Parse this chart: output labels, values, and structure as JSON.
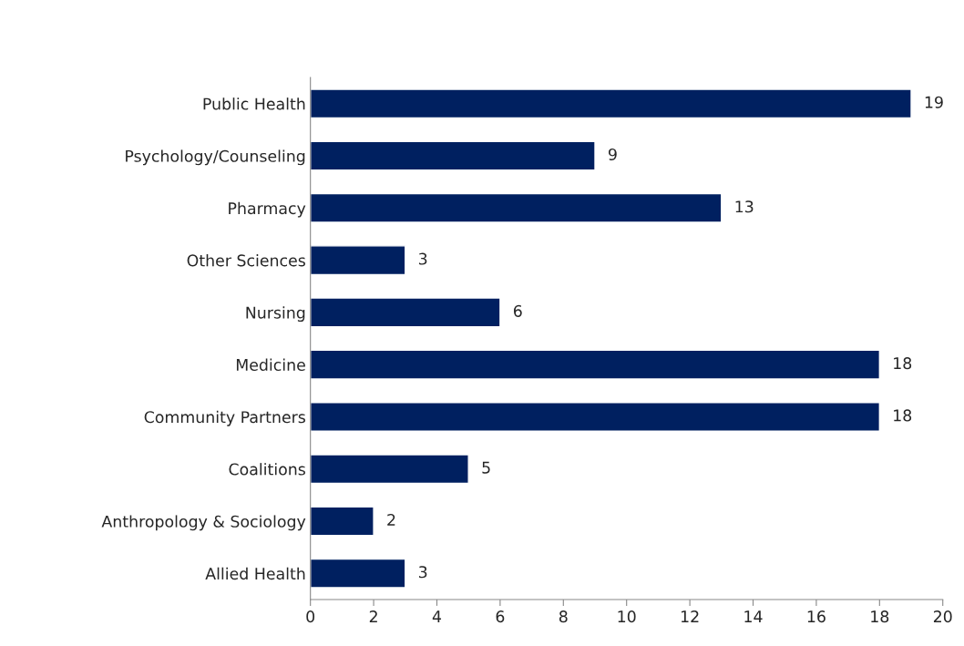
{
  "chart_data": {
    "type": "bar",
    "orientation": "horizontal",
    "categories": [
      "Public Health",
      "Psychology/Counseling",
      "Pharmacy",
      "Other Sciences",
      "Nursing",
      "Medicine",
      "Community Partners",
      "Coalitions",
      "Anthropology & Sociology",
      "Allied Health"
    ],
    "values": [
      19,
      9,
      13,
      3,
      6,
      18,
      18,
      5,
      2,
      3
    ],
    "color": "#002060",
    "xlim": [
      0,
      20
    ],
    "xticks": [
      0,
      2,
      4,
      6,
      8,
      10,
      12,
      14,
      16,
      18,
      20
    ],
    "data_labels": true,
    "grid": false,
    "legend": false
  }
}
